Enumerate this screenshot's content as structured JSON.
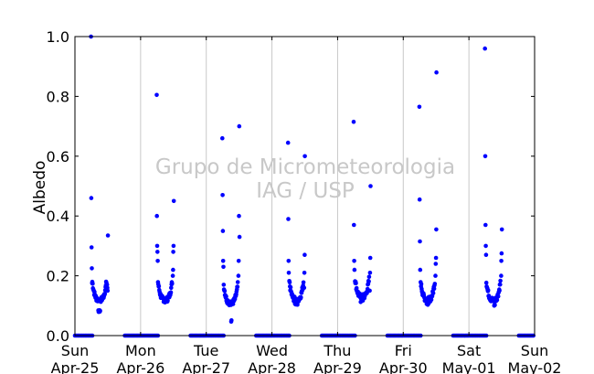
{
  "chart_data": {
    "type": "scatter",
    "ylabel": "Albedo",
    "ylim": [
      0,
      1
    ],
    "y_ticks": [
      "0.0",
      "0.2",
      "0.4",
      "0.6",
      "0.8",
      "1.0"
    ],
    "x_range_days": [
      0,
      7
    ],
    "x_ticks": [
      {
        "day": "Sun",
        "date": "Apr-25"
      },
      {
        "day": "Mon",
        "date": "Apr-26"
      },
      {
        "day": "Tue",
        "date": "Apr-27"
      },
      {
        "day": "Wed",
        "date": "Apr-28"
      },
      {
        "day": "Thu",
        "date": "Apr-29"
      },
      {
        "day": "Fri",
        "date": "Apr-30"
      },
      {
        "day": "Sat",
        "date": "May-01"
      },
      {
        "day": "Sun",
        "date": "May-02"
      }
    ],
    "watermark": [
      "Grupo de Micrometeorologia",
      "IAG / USP"
    ],
    "grid": "vertical",
    "marker_color": "#0000ff",
    "watermark_color": "#c8c8c8",
    "night_value": 0.0,
    "daily": [
      {
        "start": "2010-04-25",
        "early": [
          1.0,
          0.46,
          0.295,
          0.225,
          0.175
        ],
        "base": 0.12,
        "min": 0.075,
        "late": [
          0.17,
          0.16,
          0.15,
          0.335
        ]
      },
      {
        "start": "2010-04-26",
        "early": [
          0.805,
          0.4,
          0.3,
          0.28,
          0.25
        ],
        "base": 0.12,
        "min": 0.11,
        "late": [
          0.2,
          0.22,
          0.28,
          0.3,
          0.45
        ]
      },
      {
        "start": "2010-04-27",
        "early": [
          0.66,
          0.47,
          0.35,
          0.25,
          0.23
        ],
        "base": 0.11,
        "min": 0.045,
        "late": [
          0.2,
          0.25,
          0.4,
          0.7,
          0.33
        ]
      },
      {
        "start": "2010-04-28",
        "early": [
          0.645,
          0.39,
          0.25,
          0.21
        ],
        "base": 0.12,
        "min": 0.1,
        "late": [
          0.16,
          0.21,
          0.27,
          0.6
        ]
      },
      {
        "start": "2010-04-29",
        "early": [
          0.715,
          0.37,
          0.25,
          0.22
        ],
        "base": 0.13,
        "min": 0.11,
        "late": [
          0.15,
          0.21,
          0.26,
          0.5
        ]
      },
      {
        "start": "2010-04-30",
        "early": [
          0.765,
          0.455,
          0.315,
          0.22
        ],
        "base": 0.12,
        "min": 0.1,
        "late": [
          0.2,
          0.24,
          0.26,
          0.355,
          0.88
        ]
      },
      {
        "start": "2010-05-01",
        "early": [
          0.96,
          0.6,
          0.37,
          0.3,
          0.27
        ],
        "base": 0.12,
        "min": 0.095,
        "late": [
          0.2,
          0.25,
          0.275,
          0.355
        ]
      }
    ]
  }
}
